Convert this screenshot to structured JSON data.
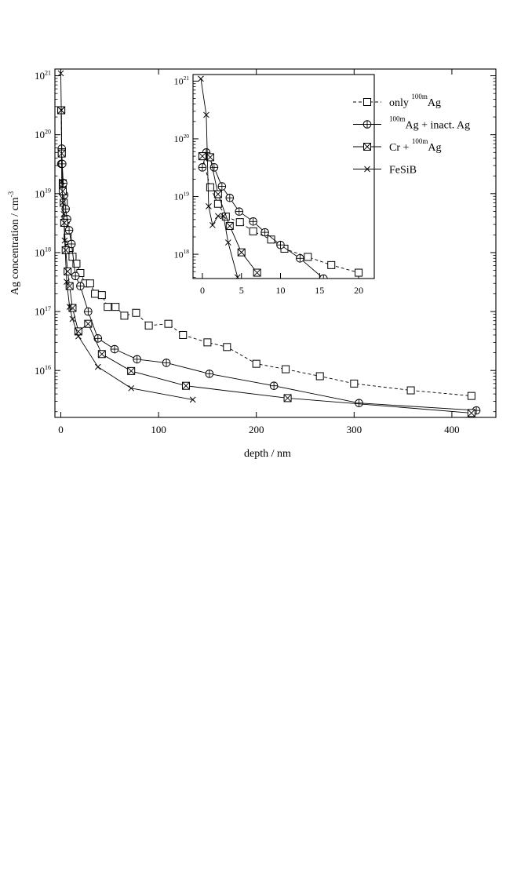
{
  "chart_data": [
    {
      "type": "scatter",
      "title": "",
      "xlabel": "depth / nm",
      "ylabel": "Ag concentration  / cm",
      "ylabel_sup": "-3",
      "x_scale": "linear",
      "y_scale": "log",
      "xlim": [
        -6,
        445
      ],
      "ylim": [
        1600000000000000.0,
        1.3e+21
      ],
      "x_ticks": [
        0,
        100,
        200,
        300,
        400
      ],
      "x_tick_labels": [
        "0",
        "100",
        "200",
        "300",
        "400"
      ],
      "y_ticks": [
        1e+16,
        1e+17,
        1e+18,
        1e+19,
        1e+20,
        1e+21
      ],
      "y_tick_labels": [
        {
          "base": "10",
          "exp": "16"
        },
        {
          "base": "10",
          "exp": "17"
        },
        {
          "base": "10",
          "exp": "18"
        },
        {
          "base": "10",
          "exp": "19"
        },
        {
          "base": "10",
          "exp": "20"
        },
        {
          "base": "10",
          "exp": "21"
        }
      ],
      "grid": false,
      "legend_position": "top-right",
      "series": [
        {
          "name": "only 100mAg",
          "legend": {
            "pre": "only ",
            "sup": "100m",
            "post": "Ag"
          },
          "marker": "square",
          "line": "dashed",
          "points": [
            [
              0.5,
              2.6e+20
            ],
            [
              1,
              5e+19
            ],
            [
              2,
              1.5e+19
            ],
            [
              3,
              7e+18
            ],
            [
              5,
              3.6e+18
            ],
            [
              7,
              1.8e+18
            ],
            [
              9,
              1.2e+18
            ],
            [
              12,
              8.5e+17
            ],
            [
              16,
              6.5e+17
            ],
            [
              20,
              4.5e+17
            ],
            [
              25,
              3e+17
            ],
            [
              30,
              3e+17
            ],
            [
              35,
              2e+17
            ],
            [
              42,
              1.9e+17
            ],
            [
              48,
              1.2e+17
            ],
            [
              56,
              1.2e+17
            ],
            [
              65,
              8.5e+16
            ],
            [
              77,
              9.5e+16
            ],
            [
              90,
              5.8e+16
            ],
            [
              110,
              6.2e+16
            ],
            [
              125,
              4e+16
            ],
            [
              150,
              3e+16
            ],
            [
              170,
              2.5e+16
            ],
            [
              200,
              1.3e+16
            ],
            [
              230,
              1.05e+16
            ],
            [
              265,
              8000000000000000.0
            ],
            [
              300,
              6000000000000000.0
            ],
            [
              358,
              4600000000000000.0
            ],
            [
              420,
              3700000000000000.0
            ]
          ]
        },
        {
          "name": "100mAg + inact. Ag",
          "legend": {
            "pre": "",
            "sup": "100m",
            "post": "Ag + inact. Ag"
          },
          "marker": "circle-plus",
          "line": "solid",
          "points": [
            [
              0.5,
              3.2e+19
            ],
            [
              1,
              5.8e+19
            ],
            [
              1.5,
              3.2e+19
            ],
            [
              2.5,
              1.5e+19
            ],
            [
              3.5,
              9.5e+18
            ],
            [
              5,
              5.5e+18
            ],
            [
              6.5,
              3.7e+18
            ],
            [
              8.5,
              2.4e+18
            ],
            [
              11,
              1.4e+18
            ],
            [
              15,
              4e+17
            ],
            [
              20,
              2.7e+17
            ],
            [
              28,
              1e+17
            ],
            [
              38,
              3.5e+16
            ],
            [
              55,
              2.3e+16
            ],
            [
              78,
              1.55e+16
            ],
            [
              108,
              1.35e+16
            ],
            [
              152,
              8800000000000000.0
            ],
            [
              218,
              5500000000000000.0
            ],
            [
              305,
              2800000000000000.0
            ],
            [
              425,
              2100000000000000.0
            ]
          ]
        },
        {
          "name": "Cr + 100mAg",
          "legend": {
            "pre": "Cr + ",
            "sup": "100m",
            "post": "Ag"
          },
          "marker": "square-x",
          "line": "solid",
          "points": [
            [
              0.5,
              2.6e+20
            ],
            [
              1,
              4.8e+19
            ],
            [
              2,
              1.1e+19
            ],
            [
              3.5,
              3.2e+18
            ],
            [
              5,
              1.1e+18
            ],
            [
              7,
              4.8e+17
            ],
            [
              9,
              2.7e+17
            ],
            [
              12,
              1.15e+17
            ],
            [
              18,
              4.6e+16
            ],
            [
              28,
              6.2e+16
            ],
            [
              42,
              1.9e+16
            ],
            [
              72,
              9800000000000000.0
            ],
            [
              128,
              5500000000000000.0
            ],
            [
              232,
              3400000000000000.0
            ],
            [
              420,
              1900000000000000.0
            ]
          ]
        },
        {
          "name": "FeSiB",
          "legend": {
            "pre": "FeSiB",
            "sup": "",
            "post": ""
          },
          "marker": "x",
          "line": "solid",
          "points": [
            [
              0,
              1.1e+21
            ],
            [
              0.5,
              2.6e+20
            ],
            [
              1,
              1.6e+19
            ],
            [
              2,
              7e+18
            ],
            [
              3,
              4.5e+18
            ],
            [
              4,
              1.6e+18
            ],
            [
              6,
              3.2e+17
            ],
            [
              9,
              1.2e+17
            ],
            [
              12,
              7.5e+16
            ],
            [
              18,
              3.8e+16
            ],
            [
              38,
              1.15e+16
            ],
            [
              72,
              5000000000000000.0
            ],
            [
              135,
              3200000000000000.0
            ]
          ]
        }
      ]
    },
    {
      "type": "scatter",
      "title": "",
      "xlabel": "",
      "ylabel": "",
      "x_scale": "linear",
      "y_scale": "log",
      "xlim": [
        -1.2,
        22
      ],
      "ylim": [
        3.8e+17,
        1.3e+21
      ],
      "x_ticks": [
        0,
        5,
        10,
        15,
        20
      ],
      "x_tick_labels": [
        "0",
        "5",
        "10",
        "15",
        "20"
      ],
      "y_ticks": [
        1e+18,
        1e+19,
        1e+20,
        1e+21
      ],
      "y_tick_labels": [
        {
          "base": "10",
          "exp": "18"
        },
        {
          "base": "10",
          "exp": "19"
        },
        {
          "base": "10",
          "exp": "20"
        },
        {
          "base": "10",
          "exp": "21"
        }
      ],
      "grid": false,
      "series": [
        {
          "name": "only 100mAg",
          "marker": "square",
          "line": "dashed",
          "points": [
            [
              0,
              5e+19
            ],
            [
              1,
              1.45e+19
            ],
            [
              2,
              7.5e+18
            ],
            [
              3,
              4.5e+18
            ],
            [
              4.8,
              3.6e+18
            ],
            [
              6.5,
              2.5e+18
            ],
            [
              8.8,
              1.8e+18
            ],
            [
              10.5,
              1.25e+18
            ],
            [
              13.5,
              9e+17
            ],
            [
              16.5,
              6.5e+17
            ],
            [
              20,
              4.8e+17
            ]
          ]
        },
        {
          "name": "100mAg + inact. Ag",
          "marker": "circle-plus",
          "line": "solid",
          "points": [
            [
              0,
              3.2e+19
            ],
            [
              0.5,
              5.8e+19
            ],
            [
              1.5,
              3.2e+19
            ],
            [
              2.5,
              1.5e+19
            ],
            [
              3.5,
              9.5e+18
            ],
            [
              4.7,
              5.5e+18
            ],
            [
              6.5,
              3.7e+18
            ],
            [
              8,
              2.4e+18
            ],
            [
              10,
              1.45e+18
            ],
            [
              12.5,
              8.5e+17
            ],
            [
              15.5,
              3.8e+17
            ]
          ]
        },
        {
          "name": "Cr + 100mAg",
          "marker": "square-x",
          "line": "solid",
          "points": [
            [
              0,
              5e+19
            ],
            [
              1,
              4.8e+19
            ],
            [
              2,
              1.1e+19
            ],
            [
              3.5,
              3.1e+18
            ],
            [
              5,
              1.08e+18
            ],
            [
              7,
              4.8e+17
            ]
          ]
        },
        {
          "name": "FeSiB",
          "marker": "x",
          "line": "solid",
          "points": [
            [
              -0.2,
              1.1e+21
            ],
            [
              0.5,
              2.6e+20
            ],
            [
              0.8,
              6.8e+18
            ],
            [
              1.3,
              3.2e+18
            ],
            [
              2,
              4.6e+18
            ],
            [
              2.7,
              4.6e+18
            ],
            [
              3.3,
              1.6e+18
            ],
            [
              4.5,
              4e+17
            ]
          ]
        }
      ]
    }
  ]
}
